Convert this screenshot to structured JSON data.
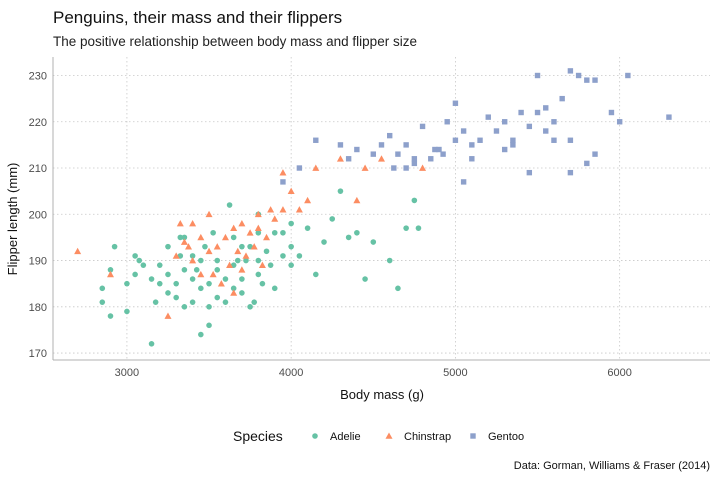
{
  "chart_data": {
    "type": "scatter",
    "title": "Penguins, their mass and their flippers",
    "subtitle": "The positive relationship between body mass and flipper size",
    "xlabel": "Body mass (g)",
    "ylabel": "Flipper length (mm)",
    "caption": "Data: Gorman, Williams & Fraser (2014)",
    "xlim": [
      2550,
      6550
    ],
    "ylim": [
      168.5,
      234
    ],
    "xticks": [
      3000,
      4000,
      5000,
      6000
    ],
    "yticks": [
      170,
      180,
      190,
      200,
      210,
      220,
      230
    ],
    "grid": true,
    "legend": {
      "title": "Species",
      "position": "bottom"
    },
    "colors": {
      "Adelie": "#66c2a5",
      "Chinstrap": "#fc8d62",
      "Gentoo": "#8da0cb"
    },
    "series": [
      {
        "name": "Adelie",
        "shape": "circle",
        "points": [
          [
            2850,
            181
          ],
          [
            2850,
            184
          ],
          [
            2900,
            178
          ],
          [
            2900,
            188
          ],
          [
            2925,
            193
          ],
          [
            3000,
            179
          ],
          [
            3000,
            185
          ],
          [
            3050,
            191
          ],
          [
            3050,
            187
          ],
          [
            3075,
            190
          ],
          [
            3100,
            189
          ],
          [
            3150,
            186
          ],
          [
            3150,
            172
          ],
          [
            3175,
            181
          ],
          [
            3200,
            189
          ],
          [
            3200,
            185
          ],
          [
            3250,
            187
          ],
          [
            3250,
            193
          ],
          [
            3250,
            183
          ],
          [
            3300,
            185
          ],
          [
            3300,
            182
          ],
          [
            3325,
            195
          ],
          [
            3325,
            191
          ],
          [
            3350,
            188
          ],
          [
            3350,
            195
          ],
          [
            3350,
            180
          ],
          [
            3400,
            191
          ],
          [
            3400,
            186
          ],
          [
            3400,
            181
          ],
          [
            3425,
            188
          ],
          [
            3450,
            174
          ],
          [
            3450,
            184
          ],
          [
            3450,
            190
          ],
          [
            3475,
            193
          ],
          [
            3500,
            185
          ],
          [
            3500,
            180
          ],
          [
            3500,
            176
          ],
          [
            3525,
            196
          ],
          [
            3550,
            190
          ],
          [
            3550,
            182
          ],
          [
            3550,
            188
          ],
          [
            3600,
            186
          ],
          [
            3600,
            181
          ],
          [
            3625,
            202
          ],
          [
            3650,
            184
          ],
          [
            3650,
            189
          ],
          [
            3650,
            195
          ],
          [
            3675,
            190
          ],
          [
            3700,
            186
          ],
          [
            3700,
            183
          ],
          [
            3700,
            193
          ],
          [
            3725,
            190
          ],
          [
            3750,
            180
          ],
          [
            3750,
            193
          ],
          [
            3775,
            181
          ],
          [
            3800,
            196
          ],
          [
            3800,
            200
          ],
          [
            3800,
            187
          ],
          [
            3800,
            190
          ],
          [
            3825,
            185
          ],
          [
            3850,
            192
          ],
          [
            3875,
            189
          ],
          [
            3900,
            196
          ],
          [
            3900,
            184
          ],
          [
            3950,
            191
          ],
          [
            3950,
            196
          ],
          [
            4000,
            198
          ],
          [
            4000,
            189
          ],
          [
            4000,
            193
          ],
          [
            4050,
            191
          ],
          [
            4100,
            197
          ],
          [
            4150,
            187
          ],
          [
            4200,
            194
          ],
          [
            4250,
            199
          ],
          [
            4300,
            205
          ],
          [
            4350,
            195
          ],
          [
            4400,
            196
          ],
          [
            4450,
            186
          ],
          [
            4500,
            194
          ],
          [
            4600,
            190
          ],
          [
            4650,
            184
          ],
          [
            4700,
            197
          ],
          [
            4750,
            203
          ],
          [
            4775,
            197
          ]
        ]
      },
      {
        "name": "Chinstrap",
        "shape": "triangle",
        "points": [
          [
            2700,
            192
          ],
          [
            2900,
            187
          ],
          [
            3250,
            178
          ],
          [
            3300,
            191
          ],
          [
            3325,
            198
          ],
          [
            3350,
            194
          ],
          [
            3375,
            193
          ],
          [
            3400,
            198
          ],
          [
            3400,
            190
          ],
          [
            3450,
            195
          ],
          [
            3450,
            187
          ],
          [
            3500,
            200
          ],
          [
            3500,
            192
          ],
          [
            3525,
            187
          ],
          [
            3550,
            193
          ],
          [
            3575,
            185
          ],
          [
            3600,
            195
          ],
          [
            3625,
            189
          ],
          [
            3650,
            197
          ],
          [
            3650,
            183
          ],
          [
            3675,
            192
          ],
          [
            3700,
            198
          ],
          [
            3700,
            188
          ],
          [
            3725,
            191
          ],
          [
            3750,
            196
          ],
          [
            3775,
            193
          ],
          [
            3800,
            200
          ],
          [
            3800,
            197
          ],
          [
            3825,
            189
          ],
          [
            3850,
            195
          ],
          [
            3875,
            201
          ],
          [
            3900,
            199
          ],
          [
            3950,
            209
          ],
          [
            3950,
            201
          ],
          [
            4000,
            205
          ],
          [
            4050,
            201
          ],
          [
            4100,
            203
          ],
          [
            4150,
            210
          ],
          [
            4300,
            212
          ],
          [
            4400,
            203
          ],
          [
            4450,
            210
          ],
          [
            4550,
            212
          ],
          [
            4800,
            210
          ]
        ]
      },
      {
        "name": "Gentoo",
        "shape": "square",
        "points": [
          [
            3950,
            207
          ],
          [
            4050,
            210
          ],
          [
            4150,
            216
          ],
          [
            4300,
            215
          ],
          [
            4350,
            212
          ],
          [
            4400,
            214
          ],
          [
            4500,
            213
          ],
          [
            4550,
            215
          ],
          [
            4600,
            217
          ],
          [
            4625,
            210
          ],
          [
            4650,
            213
          ],
          [
            4700,
            215
          ],
          [
            4750,
            211
          ],
          [
            4800,
            219
          ],
          [
            4850,
            212
          ],
          [
            4875,
            214
          ],
          [
            4900,
            214
          ],
          [
            4925,
            213
          ],
          [
            4950,
            220
          ],
          [
            5000,
            224
          ],
          [
            5000,
            216
          ],
          [
            5050,
            218
          ],
          [
            5100,
            215
          ],
          [
            5100,
            212
          ],
          [
            5150,
            216
          ],
          [
            5200,
            221
          ],
          [
            5250,
            218
          ],
          [
            5300,
            220
          ],
          [
            5350,
            215
          ],
          [
            5400,
            222
          ],
          [
            5450,
            219
          ],
          [
            5500,
            222
          ],
          [
            5500,
            230
          ],
          [
            5550,
            223
          ],
          [
            5550,
            218
          ],
          [
            5600,
            220
          ],
          [
            5650,
            225
          ],
          [
            5700,
            231
          ],
          [
            5750,
            230
          ],
          [
            5800,
            229
          ],
          [
            5850,
            229
          ],
          [
            5950,
            222
          ],
          [
            6000,
            220
          ],
          [
            6050,
            230
          ],
          [
            6300,
            221
          ],
          [
            4700,
            210
          ],
          [
            5050,
            207
          ],
          [
            5300,
            214
          ],
          [
            5350,
            216
          ],
          [
            4750,
            212
          ],
          [
            5600,
            216
          ],
          [
            5700,
            216
          ],
          [
            5800,
            211
          ],
          [
            5850,
            213
          ],
          [
            5450,
            209
          ],
          [
            5700,
            209
          ]
        ]
      }
    ]
  }
}
